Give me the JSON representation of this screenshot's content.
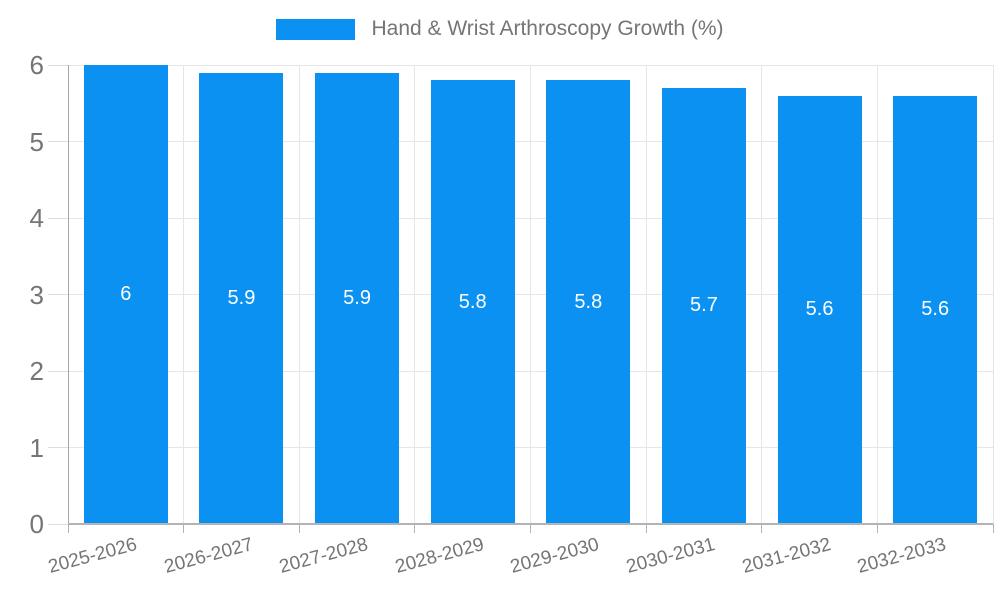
{
  "chart_data": {
    "type": "bar",
    "title": "Hand & Wrist Arthroscopy Growth (%)",
    "categories": [
      "2025-2026",
      "2026-2027",
      "2027-2028",
      "2028-2029",
      "2029-2030",
      "2030-2031",
      "2031-2032",
      "2032-2033"
    ],
    "values": [
      6,
      5.9,
      5.9,
      5.8,
      5.8,
      5.7,
      5.6,
      5.6
    ],
    "bar_labels": [
      "6",
      "5.9",
      "5.9",
      "5.8",
      "5.8",
      "5.7",
      "5.6",
      "5.6"
    ],
    "xlabel": "",
    "ylabel": "",
    "ylim": [
      0,
      6
    ],
    "yticks": [
      0,
      1,
      2,
      3,
      4,
      5,
      6
    ],
    "grid": true,
    "legend_position": "top",
    "x_tick_rotation_deg": -15,
    "colors": {
      "bar": "#0A91F2",
      "bar_label": "#ffffff",
      "axis_label": "#757575",
      "gridline": "#e6e6e6",
      "axis_line": "#b3b3b3",
      "background": "#ffffff"
    }
  }
}
